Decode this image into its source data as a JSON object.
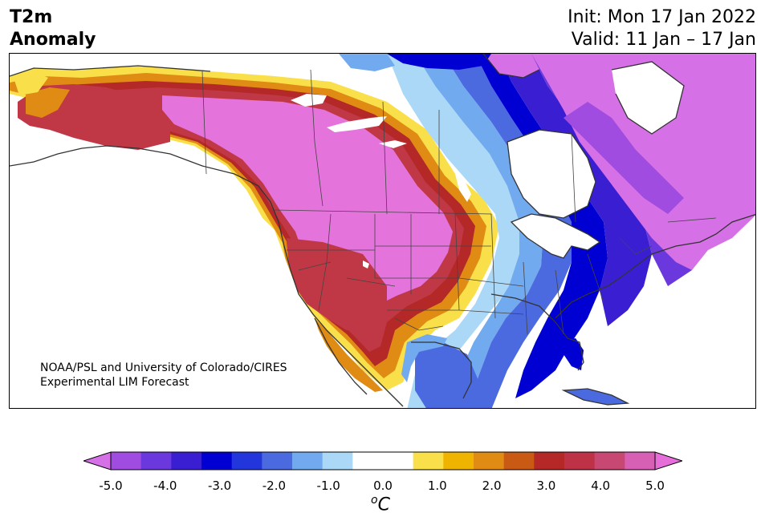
{
  "title": {
    "left_line1": "T2m",
    "left_line2": "Anomaly",
    "right_line1": "Init: Mon 17 Jan 2022",
    "right_line2": "Valid: 11 Jan – 17 Jan"
  },
  "credit": {
    "line1": "NOAA/PSL and University of Colorado/CIRES",
    "line2": "Experimental LIM Forecast"
  },
  "colorbar": {
    "ticks": [
      "-5.0",
      "-4.0",
      "-3.0",
      "-2.0",
      "-1.0",
      "0.0",
      "1.0",
      "2.0",
      "3.0",
      "4.0",
      "5.0"
    ],
    "units_main": "C",
    "units_sup": "o",
    "colors": [
      "#d670e6",
      "#a04ce0",
      "#6a38dc",
      "#3a1fd2",
      "#0000d2",
      "#2236dc",
      "#4b6ae0",
      "#72aaf0",
      "#aad8f6",
      "#ffffff",
      "#ffffff",
      "#f9e04a",
      "#efb400",
      "#e08c14",
      "#c85a14",
      "#b42828",
      "#be3248",
      "#c84874",
      "#d860b4",
      "#e66ed8"
    ]
  },
  "map": {
    "region": "North America",
    "variable": "2m temperature anomaly",
    "colors": {
      "land_outline": "#333333",
      "state_border": "#444444",
      "warmest": "#e474dc",
      "warm_red": "#c03846",
      "orange": "#e08c14",
      "yellow": "#f9e04a",
      "light_blue": "#aad8f6",
      "mid_blue": "#4b6ae0",
      "deep_blue": "#0000d2",
      "violet": "#6a38dc",
      "purple_cool": "#d670e6"
    }
  }
}
